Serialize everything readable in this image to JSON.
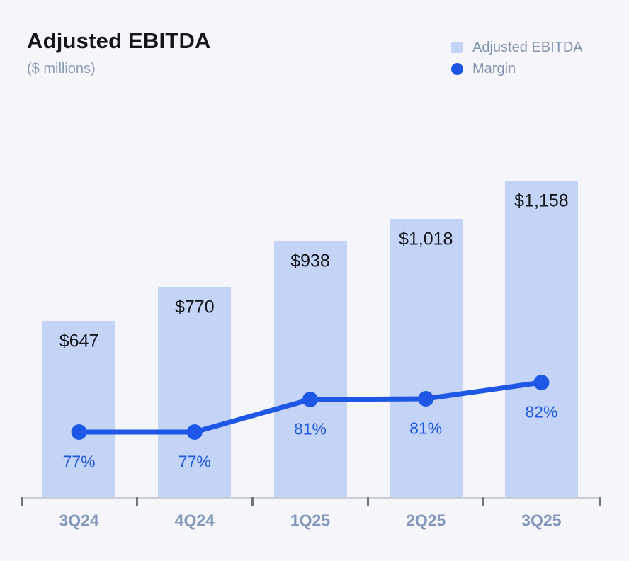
{
  "header": {
    "title": "Adjusted EBITDA",
    "subtitle": "($ millions)"
  },
  "legend": {
    "items": [
      {
        "label": "Adjusted EBITDA",
        "marker": "square",
        "color": "#c3d4f7"
      },
      {
        "label": "Margin",
        "marker": "circle",
        "color": "#1e56e6"
      }
    ]
  },
  "colors": {
    "background": "#f5f6fa",
    "bar": "#c3d4f7",
    "line": "#1e56e6",
    "value_label": "#15171c",
    "pct_label": "#2158e0",
    "axis_label": "#8497ba",
    "axis_line": "#caced6",
    "tick": "#70747b",
    "subtitle": "#8a9ab8",
    "legend_text": "#8293b0",
    "title": "#14161a"
  },
  "chart_data": {
    "type": "bar",
    "title": "Adjusted EBITDA",
    "subtitle": "($ millions)",
    "xlabel": "",
    "ylabel": "",
    "grid": false,
    "legend_position": "top-right",
    "categories": [
      "3Q24",
      "4Q24",
      "1Q25",
      "2Q25",
      "3Q25"
    ],
    "series": [
      {
        "name": "Adjusted EBITDA",
        "type": "bar",
        "values": [
          647,
          770,
          938,
          1018,
          1158
        ],
        "labels": [
          "$647",
          "$770",
          "$938",
          "$1,018",
          "$1,158"
        ]
      },
      {
        "name": "Margin",
        "type": "line",
        "values": [
          77,
          77,
          81,
          81,
          82
        ],
        "labels": [
          "77%",
          "77%",
          "81%",
          "81%",
          "82%"
        ]
      }
    ],
    "ylim": [
      0,
      1200
    ]
  }
}
